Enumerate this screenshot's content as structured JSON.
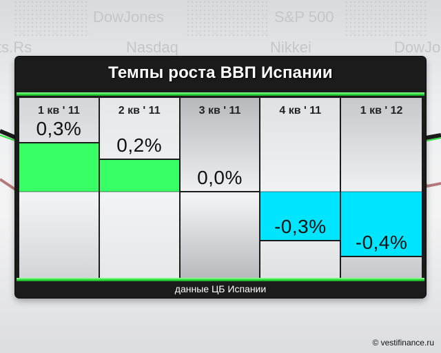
{
  "background": {
    "ticker_words": [
      "DowJones",
      "S&P 500",
      "ts.Rs",
      "Nasdaq",
      "Nikkei",
      "DowJon"
    ]
  },
  "title": "Темпы роста ВВП Испании",
  "source_note": "данные ЦБ Испании",
  "watermark": "© vestifinance.ru",
  "colors": {
    "positive": "#39ff66",
    "negative": "#00e5ff",
    "accent_green": "#2fe23f",
    "panel": "#1b1b1b"
  },
  "chart_data": {
    "type": "bar",
    "categories": [
      "1 кв ' 11",
      "2 кв ' 11",
      "3 кв ' 11",
      "4 кв ' 11",
      "1 кв ' 12"
    ],
    "values": [
      0.3,
      0.2,
      0.0,
      -0.3,
      -0.4
    ],
    "value_labels": [
      "0,3%",
      "0,2%",
      "0,0%",
      "-0,3%",
      "-0,4%"
    ],
    "title": "Темпы роста ВВП Испании",
    "ylim": [
      -0.4,
      0.3
    ],
    "grid": false,
    "legend": "none"
  }
}
